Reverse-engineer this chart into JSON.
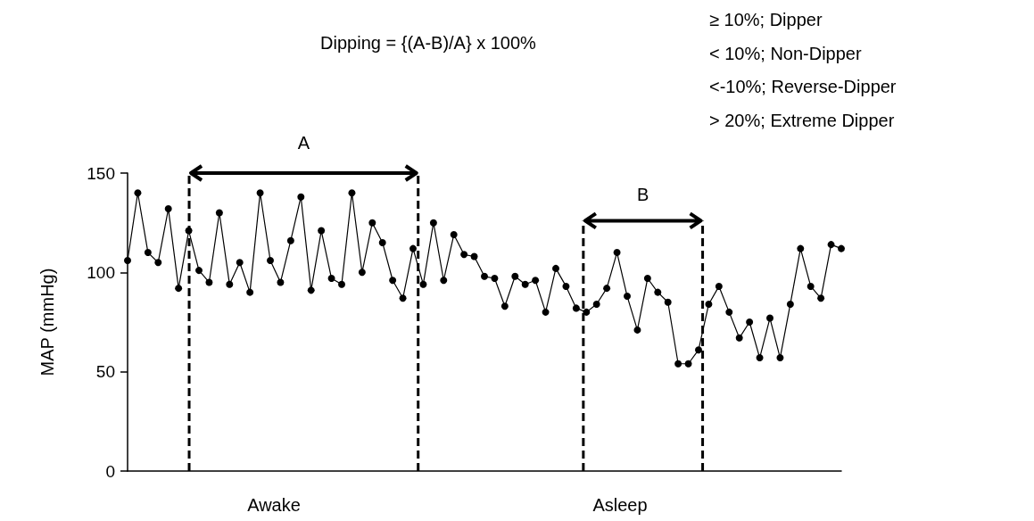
{
  "chart_data": {
    "type": "line",
    "ylabel": "MAP (mmHg)",
    "categories": [
      null,
      null,
      null,
      null,
      null,
      null,
      null,
      null,
      null,
      null,
      null,
      null,
      null,
      null,
      null,
      null,
      null,
      null,
      null,
      null,
      null,
      null,
      null,
      null,
      null,
      null,
      null,
      null,
      null,
      null,
      null,
      null,
      null,
      null,
      null,
      null,
      null,
      null,
      null,
      null,
      null,
      null,
      null,
      null,
      null,
      null,
      null,
      null,
      null,
      null,
      null,
      null,
      null,
      null,
      null,
      null,
      null,
      null,
      null,
      null,
      null,
      null,
      null,
      null,
      null,
      null,
      null,
      null,
      null,
      null,
      null
    ],
    "series": [
      {
        "color": "#000000",
        "values": [
          106,
          140,
          110,
          105,
          132,
          92,
          121,
          101,
          95,
          130,
          94,
          105,
          90,
          140,
          106,
          95,
          116,
          138,
          91,
          121,
          97,
          94,
          140,
          100,
          125,
          115,
          96,
          87,
          112,
          94,
          125,
          96,
          119,
          109,
          108,
          98,
          97,
          83,
          98,
          94,
          96,
          80,
          102,
          93,
          82,
          80,
          84,
          92,
          110,
          88,
          71,
          97,
          90,
          85,
          54,
          54,
          61,
          84,
          93,
          80,
          67,
          75,
          57,
          77,
          57,
          84,
          112,
          93,
          87,
          114,
          112
        ]
      }
    ],
    "ylim": [
      0,
      150
    ],
    "yticks": [
      0,
      50,
      100,
      150
    ],
    "grid": false,
    "marker": "circle",
    "line_style": "solid",
    "annotations": [
      "Dipping = {(A-B)/A} x 100%",
      "≥ 10%; Dipper",
      "< 10%; Non-Dipper",
      "<-10%; Reverse-Dipper",
      "> 20%; Extreme Dipper",
      "A",
      "B",
      "Awake",
      "Asleep"
    ]
  }
}
